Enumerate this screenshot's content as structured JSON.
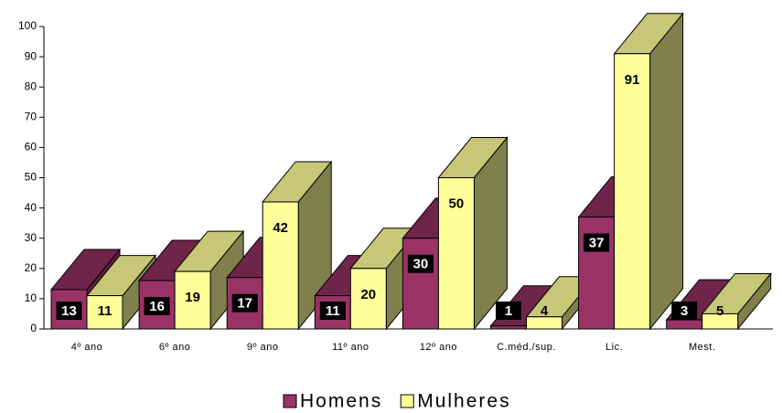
{
  "chart_data": {
    "type": "bar3d",
    "categories": [
      "4º ano",
      "6º ano",
      "9º ano",
      "11º ano",
      "12º ano",
      "C.méd./sup.",
      "Lic.",
      "Mest."
    ],
    "series": [
      {
        "name": "Homens",
        "color": "#993366",
        "values": [
          13,
          16,
          17,
          11,
          30,
          1,
          37,
          3
        ]
      },
      {
        "name": "Mulheres",
        "color": "#ffff99",
        "values": [
          11,
          19,
          42,
          20,
          50,
          4,
          91,
          5
        ]
      }
    ],
    "ylim": [
      0,
      100
    ],
    "yticks": [
      0,
      10,
      20,
      30,
      40,
      50,
      60,
      70,
      80,
      90,
      100
    ],
    "legend": "bottom"
  }
}
